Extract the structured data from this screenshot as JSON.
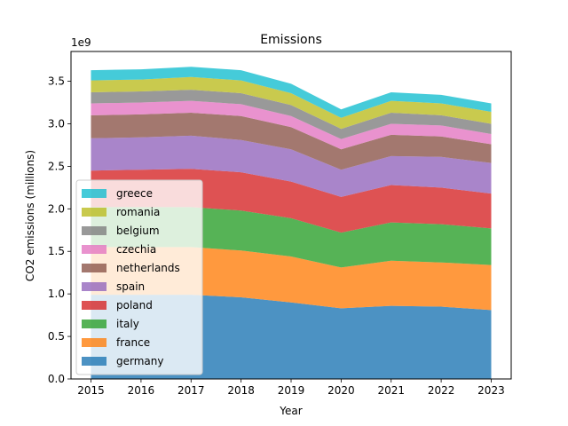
{
  "chart_data": {
    "type": "area",
    "stacked": true,
    "title": "Emissions",
    "xlabel": "Year",
    "ylabel": "CO2 emissions (millions)",
    "y_scale_label": "1e9",
    "x": [
      2015,
      2016,
      2017,
      2018,
      2019,
      2020,
      2021,
      2022,
      2023
    ],
    "xlim": [
      2014.6,
      2023.4
    ],
    "ylim": [
      0,
      3.85
    ],
    "y_ticks": [
      "0.0",
      "0.5",
      "1.0",
      "1.5",
      "2.0",
      "2.5",
      "3.0",
      "3.5"
    ],
    "grid": false,
    "legend_position": "center-left",
    "series": [
      {
        "name": "germany",
        "color": "#1f77b4",
        "values": [
          0.99,
          0.99,
          0.99,
          0.96,
          0.9,
          0.83,
          0.86,
          0.85,
          0.81
        ]
      },
      {
        "name": "france",
        "color": "#ff7f0e",
        "values": [
          0.56,
          0.56,
          0.56,
          0.55,
          0.54,
          0.48,
          0.53,
          0.52,
          0.53
        ]
      },
      {
        "name": "italy",
        "color": "#2ca02c",
        "values": [
          0.47,
          0.47,
          0.47,
          0.47,
          0.45,
          0.41,
          0.45,
          0.45,
          0.43
        ]
      },
      {
        "name": "poland",
        "color": "#d62728",
        "values": [
          0.43,
          0.44,
          0.45,
          0.45,
          0.43,
          0.42,
          0.44,
          0.43,
          0.41
        ]
      },
      {
        "name": "spain",
        "color": "#9467bd",
        "values": [
          0.38,
          0.38,
          0.39,
          0.38,
          0.38,
          0.32,
          0.34,
          0.36,
          0.36
        ]
      },
      {
        "name": "netherlands",
        "color": "#8c564b",
        "values": [
          0.27,
          0.27,
          0.27,
          0.28,
          0.26,
          0.24,
          0.25,
          0.24,
          0.22
        ]
      },
      {
        "name": "czechia",
        "color": "#e377c2",
        "values": [
          0.14,
          0.14,
          0.14,
          0.14,
          0.13,
          0.12,
          0.13,
          0.13,
          0.12
        ]
      },
      {
        "name": "belgium",
        "color": "#7f7f7f",
        "values": [
          0.13,
          0.13,
          0.13,
          0.13,
          0.13,
          0.12,
          0.13,
          0.12,
          0.12
        ]
      },
      {
        "name": "romania",
        "color": "#bcbd22",
        "values": [
          0.14,
          0.14,
          0.15,
          0.15,
          0.14,
          0.13,
          0.14,
          0.14,
          0.14
        ]
      },
      {
        "name": "greece",
        "color": "#17becf",
        "values": [
          0.12,
          0.12,
          0.12,
          0.12,
          0.11,
          0.1,
          0.1,
          0.1,
          0.1
        ]
      }
    ]
  }
}
